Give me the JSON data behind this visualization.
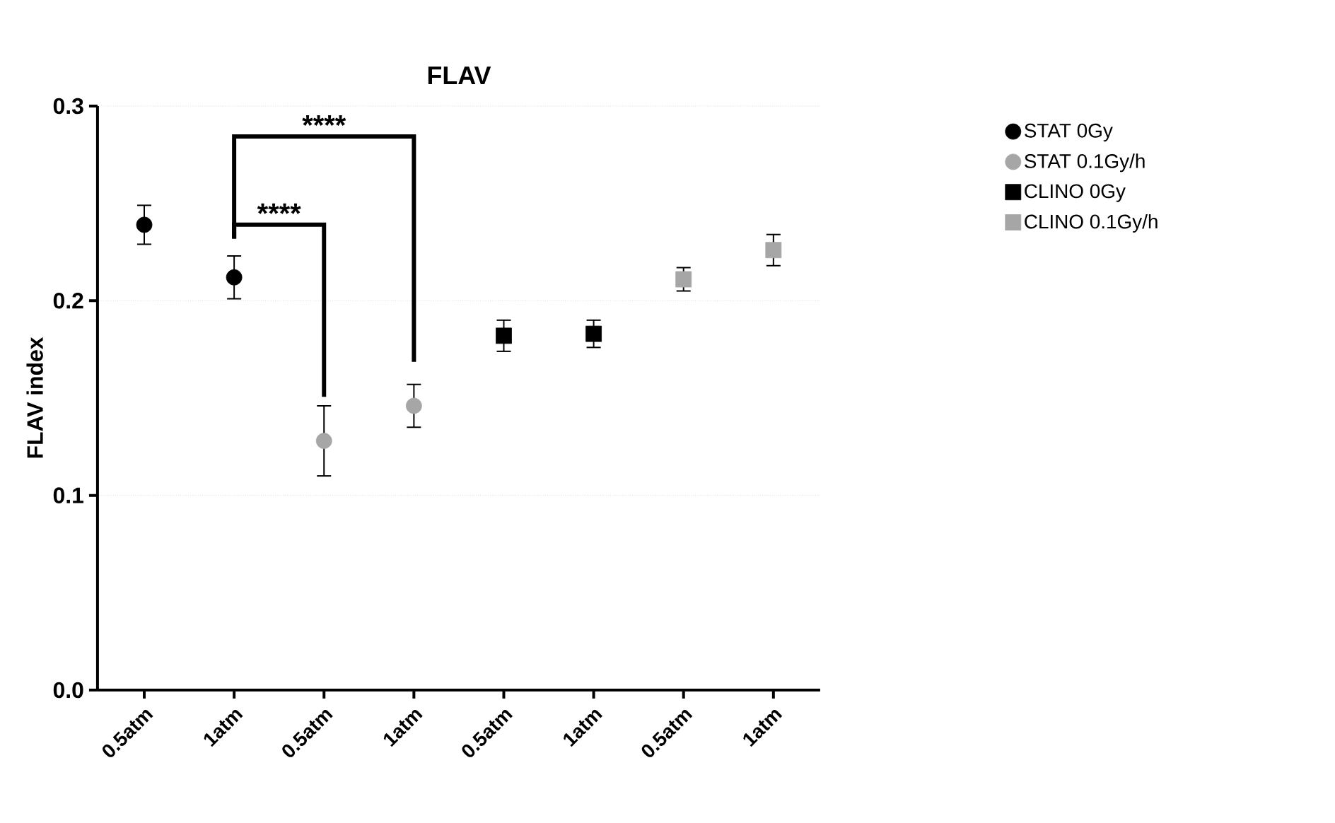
{
  "chart_data": {
    "type": "scatter",
    "title": "FLAV",
    "ylabel": "FLAV index",
    "categories": [
      "0.5atm",
      "1atm",
      "0.5atm",
      "1atm",
      "0.5atm",
      "1atm",
      "0.5atm",
      "1atm"
    ],
    "series": [
      {
        "name": "STAT 0Gy",
        "color": "#000000",
        "marker": "circle",
        "values": [
          0.239,
          0.212,
          null,
          null,
          null,
          null,
          null,
          null
        ],
        "errors": [
          0.01,
          0.011,
          null,
          null,
          null,
          null,
          null,
          null
        ]
      },
      {
        "name": "STAT 0.1Gy/h",
        "color": "#a6a6a6",
        "marker": "circle",
        "values": [
          null,
          null,
          0.128,
          0.146,
          null,
          null,
          null,
          null
        ],
        "errors": [
          null,
          null,
          0.018,
          0.011,
          null,
          null,
          null,
          null
        ]
      },
      {
        "name": "CLINO 0Gy",
        "color": "#000000",
        "marker": "square",
        "values": [
          null,
          null,
          null,
          null,
          0.182,
          0.183,
          null,
          null
        ],
        "errors": [
          null,
          null,
          null,
          null,
          0.008,
          0.007,
          null,
          null
        ]
      },
      {
        "name": "CLINO 0.1Gy/h",
        "color": "#a6a6a6",
        "marker": "square",
        "values": [
          null,
          null,
          null,
          null,
          null,
          null,
          0.211,
          0.226
        ],
        "errors": [
          null,
          null,
          null,
          null,
          null,
          null,
          0.006,
          0.008
        ]
      }
    ],
    "ylim": [
      0,
      0.3
    ],
    "yticks": [
      {
        "value": 0,
        "label": "0.0"
      },
      {
        "value": 0.1,
        "label": "0.1"
      },
      {
        "value": 0.2,
        "label": "0.2"
      },
      {
        "value": 0.3,
        "label": "0.3"
      }
    ],
    "grid": "y",
    "legend": "top right",
    "annotations": [
      "****",
      "****"
    ]
  }
}
